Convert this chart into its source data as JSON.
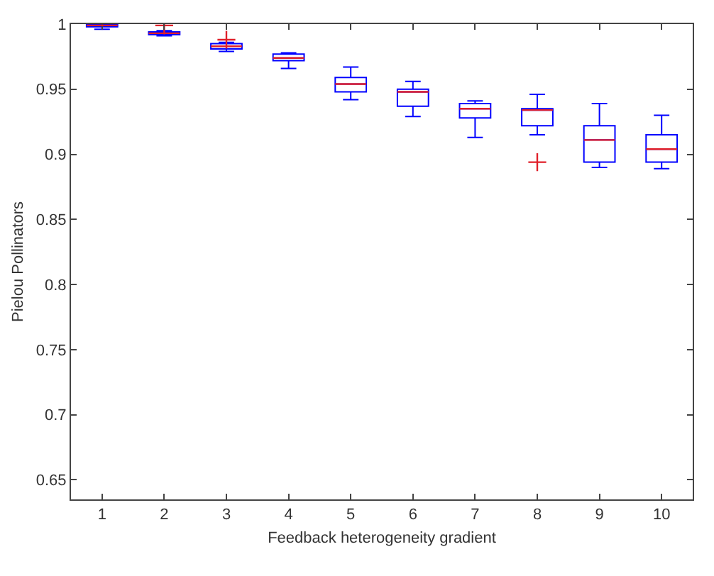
{
  "chart_data": {
    "type": "box",
    "xlabel": "Feedback heterogeneity gradient",
    "ylabel": "Pielou Pollinators",
    "categories": [
      "1",
      "2",
      "3",
      "4",
      "5",
      "6",
      "7",
      "8",
      "9",
      "10"
    ],
    "boxes": [
      {
        "low": 0.996,
        "q1": 0.998,
        "median": 0.999,
        "q3": 1,
        "high": 1
      },
      {
        "low": 0.991,
        "q1": 0.992,
        "median": 0.993,
        "q3": 0.994,
        "high": 0.995,
        "outliers": [
          0.999
        ]
      },
      {
        "low": 0.979,
        "q1": 0.981,
        "median": 0.983,
        "q3": 0.985,
        "high": 0.986,
        "outliers": [
          0.988
        ]
      },
      {
        "low": 0.966,
        "q1": 0.972,
        "median": 0.974,
        "q3": 0.977,
        "high": 0.978
      },
      {
        "low": 0.942,
        "q1": 0.948,
        "median": 0.954,
        "q3": 0.959,
        "high": 0.967
      },
      {
        "low": 0.929,
        "q1": 0.937,
        "median": 0.948,
        "q3": 0.95,
        "high": 0.956
      },
      {
        "low": 0.913,
        "q1": 0.928,
        "median": 0.935,
        "q3": 0.939,
        "high": 0.941
      },
      {
        "low": 0.915,
        "q1": 0.922,
        "median": 0.934,
        "q3": 0.935,
        "high": 0.946,
        "outliers": [
          0.894
        ]
      },
      {
        "low": 0.89,
        "q1": 0.894,
        "median": 0.911,
        "q3": 0.922,
        "high": 0.939
      },
      {
        "low": 0.889,
        "q1": 0.894,
        "median": 0.904,
        "q3": 0.915,
        "high": 0.93
      }
    ],
    "color": "#0000ff",
    "ylim": [
      0.635,
      1
    ],
    "yticks": [
      0.65,
      0.7,
      0.75,
      0.8,
      0.85,
      0.9,
      0.95,
      1
    ],
    "grid": false
  }
}
